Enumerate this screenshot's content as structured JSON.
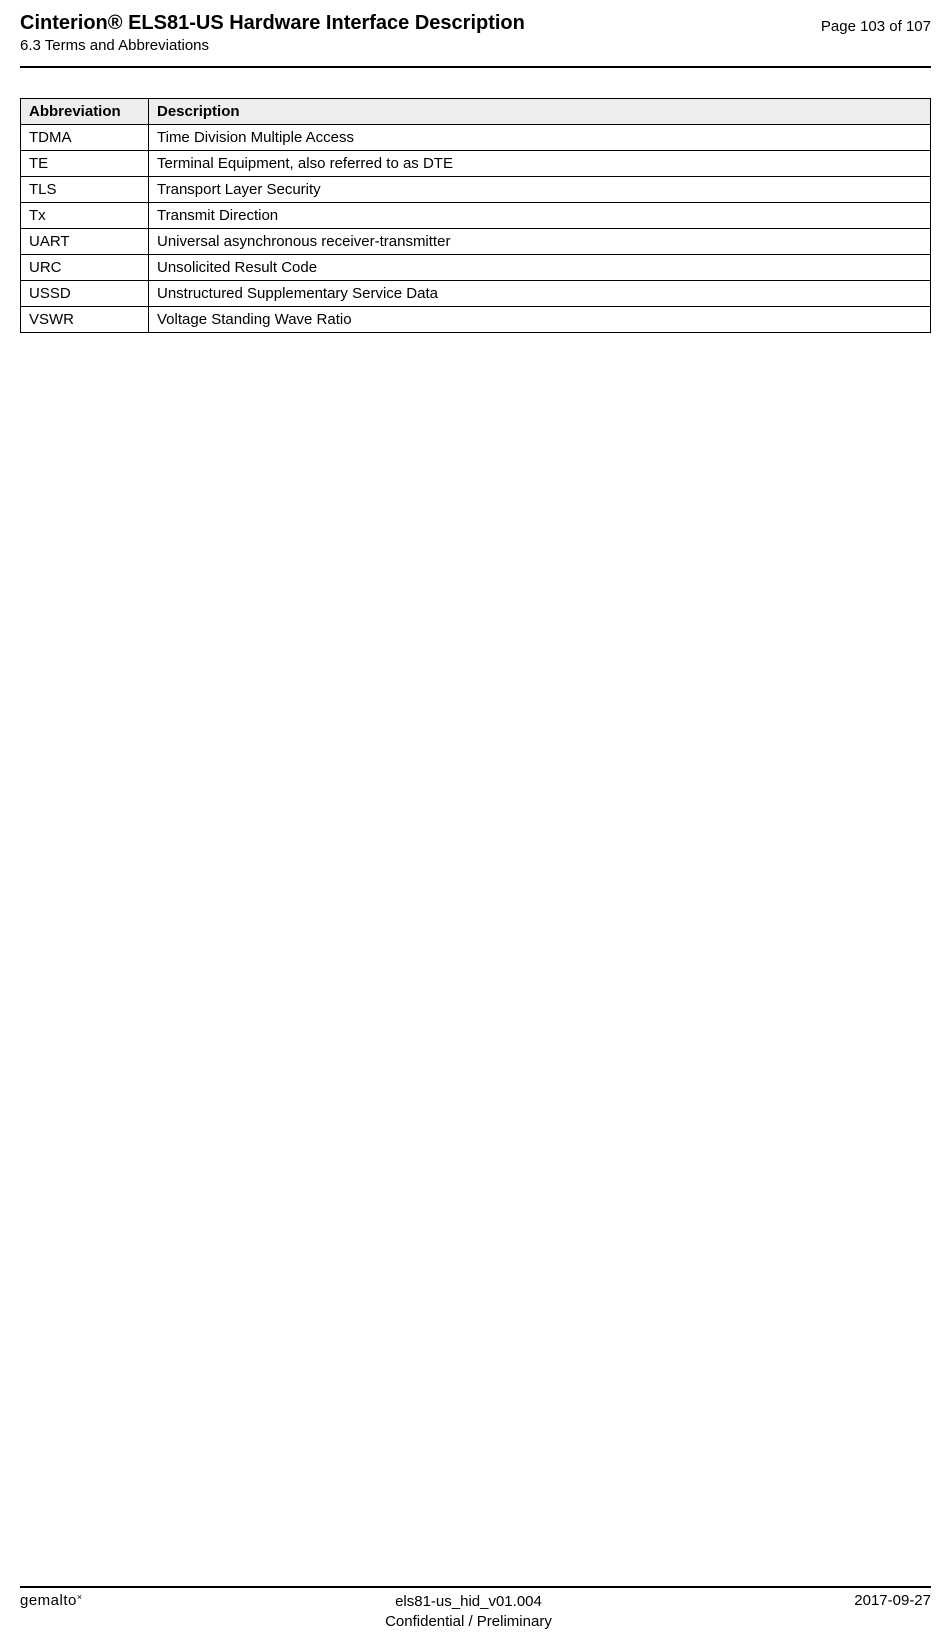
{
  "header": {
    "doc_title": "Cinterion® ELS81-US Hardware Interface Description",
    "section": "6.3 Terms and Abbreviations",
    "page_label": "Page 103 of 107"
  },
  "table": {
    "header_bg": "#ededed",
    "columns": [
      "Abbreviation",
      "Description"
    ],
    "rows": [
      [
        "TDMA",
        "Time Division Multiple Access"
      ],
      [
        "TE",
        "Terminal Equipment, also referred to as DTE"
      ],
      [
        "TLS",
        "Transport Layer Security"
      ],
      [
        "Tx",
        "Transmit Direction"
      ],
      [
        "UART",
        "Universal asynchronous receiver-transmitter"
      ],
      [
        "URC",
        "Unsolicited Result Code"
      ],
      [
        "USSD",
        "Unstructured Supplementary Service Data"
      ],
      [
        "VSWR",
        "Voltage Standing Wave Ratio"
      ]
    ]
  },
  "footer": {
    "brand": "gemalto",
    "brand_mark": "×",
    "doc_id": "els81-us_hid_v01.004",
    "classification": "Confidential / Preliminary",
    "date": "2017-09-27"
  }
}
